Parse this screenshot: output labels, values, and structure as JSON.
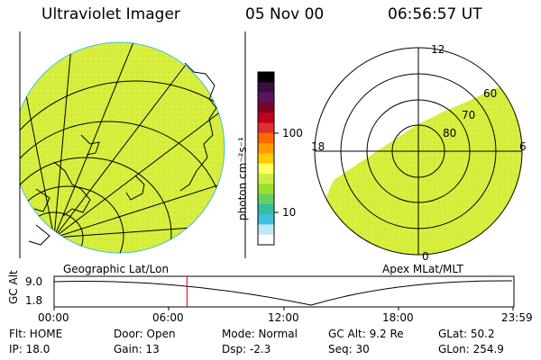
{
  "header": {
    "instrument": "Ultraviolet Imager",
    "date": "05 Nov 00",
    "time": "06:56:57 UT"
  },
  "colorbar": {
    "unit_label": "photon cm⁻²s⁻¹",
    "ticks": [
      "100",
      "10"
    ],
    "colors": [
      "#000000",
      "#3a0f3f",
      "#5a1460",
      "#800020",
      "#c0001a",
      "#e0302a",
      "#ff6a00",
      "#ff9a00",
      "#ffcc00",
      "#ffff66",
      "#ccee44",
      "#99e033",
      "#66d060",
      "#33c0a0",
      "#40c0e0",
      "#bfe8f8",
      "#ffffff"
    ]
  },
  "left_panel": {
    "caption": "Geographic Lat/Lon",
    "fill_color": "#d8ee3c"
  },
  "right_panel": {
    "caption": "Apex MLat/MLT",
    "mlt_labels": {
      "top": "12",
      "left": "18",
      "right": "6",
      "bottom": "0"
    },
    "lat_labels": [
      "60",
      "70",
      "80"
    ],
    "fill_color": "#d8ee3c"
  },
  "altitude_plot": {
    "ylabel": "GC Alt",
    "ymax_label": "9.0",
    "ymin_label": "1.8",
    "x_ticks": [
      "00:00",
      "06:00",
      "12:00",
      "18:00",
      "23:59"
    ],
    "marker_time_fraction": 0.289,
    "marker_color": "#e00000"
  },
  "info": {
    "row1": {
      "flt": "Flt: HOME",
      "door": "Door: Open",
      "mode": "Mode: Normal",
      "gcalt": "GC Alt: 9.2 Re",
      "glat": "GLat:  50.2"
    },
    "row2": {
      "ip": "IP: 18.0",
      "gain": "Gain: 13",
      "dsp": "Dsp:    -2.3",
      "seq": "Seq: 30",
      "glon": "GLon: 254.9"
    }
  }
}
